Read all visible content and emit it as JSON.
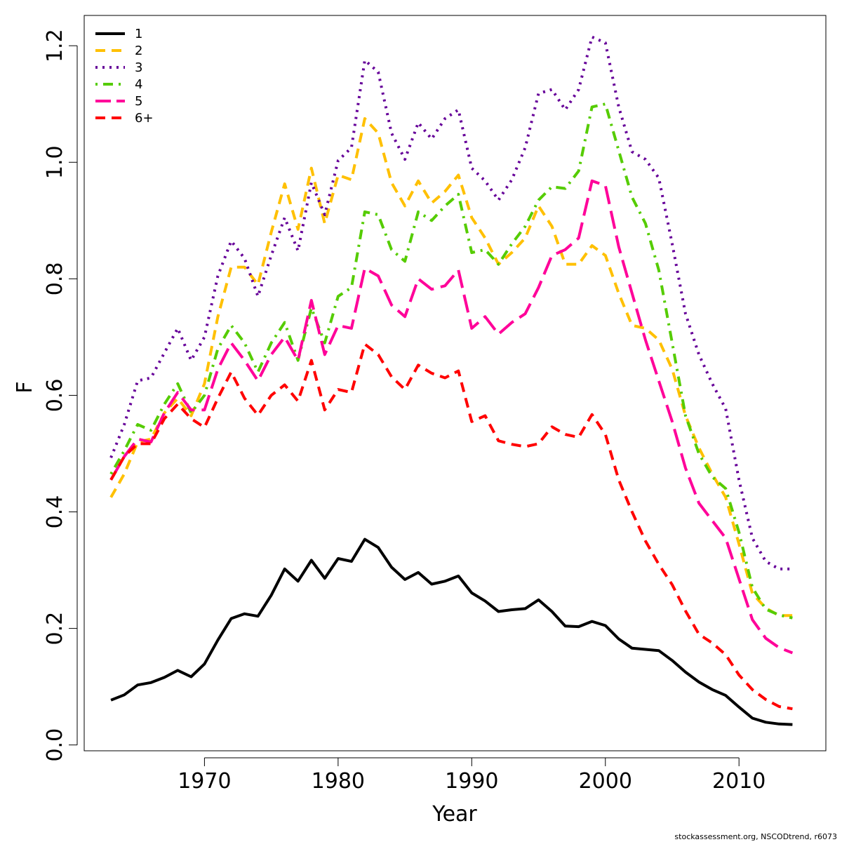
{
  "chart_data": {
    "type": "line",
    "xlabel": "Year",
    "ylabel": "F",
    "xlim": [
      1961,
      2016.5
    ],
    "ylim": [
      -0.01,
      1.252
    ],
    "xticks": [
      1970,
      1980,
      1990,
      2000,
      2010
    ],
    "yticks": [
      0.0,
      0.2,
      0.4,
      0.6,
      0.8,
      1.0,
      1.2
    ],
    "xtick_labels": [
      "1970",
      "1980",
      "1990",
      "2000",
      "2010"
    ],
    "ytick_labels": [
      "0.0",
      "0.2",
      "0.4",
      "0.6",
      "0.8",
      "1.0",
      "1.2"
    ],
    "grid": false,
    "legend_position": "top-left",
    "x": [
      1963,
      1964,
      1965,
      1966,
      1967,
      1968,
      1969,
      1970,
      1971,
      1972,
      1973,
      1974,
      1975,
      1976,
      1977,
      1978,
      1979,
      1980,
      1981,
      1982,
      1983,
      1984,
      1985,
      1986,
      1987,
      1988,
      1989,
      1990,
      1991,
      1992,
      1993,
      1994,
      1995,
      1996,
      1997,
      1998,
      1999,
      2000,
      2001,
      2002,
      2003,
      2004,
      2005,
      2006,
      2007,
      2008,
      2009,
      2010,
      2011,
      2012,
      2013,
      2014
    ],
    "series": [
      {
        "name": "1",
        "color": "#000000",
        "dash": "solid",
        "values": [
          0.077,
          0.086,
          0.103,
          0.107,
          0.116,
          0.128,
          0.117,
          0.139,
          0.18,
          0.217,
          0.225,
          0.221,
          0.257,
          0.302,
          0.281,
          0.317,
          0.286,
          0.32,
          0.315,
          0.353,
          0.339,
          0.305,
          0.284,
          0.296,
          0.276,
          0.281,
          0.29,
          0.261,
          0.247,
          0.229,
          0.232,
          0.234,
          0.249,
          0.229,
          0.204,
          0.203,
          0.212,
          0.205,
          0.182,
          0.166,
          0.164,
          0.162,
          0.145,
          0.125,
          0.108,
          0.095,
          0.085,
          0.065,
          0.046,
          0.039,
          0.036,
          0.035
        ]
      },
      {
        "name": "2",
        "color": "#FFC000",
        "dash": "dashed",
        "values": [
          0.425,
          0.465,
          0.52,
          0.525,
          0.57,
          0.595,
          0.565,
          0.62,
          0.735,
          0.82,
          0.82,
          0.79,
          0.88,
          0.963,
          0.885,
          0.99,
          0.895,
          0.978,
          0.97,
          1.075,
          1.05,
          0.965,
          0.925,
          0.968,
          0.93,
          0.95,
          0.978,
          0.905,
          0.87,
          0.825,
          0.845,
          0.87,
          0.925,
          0.89,
          0.825,
          0.825,
          0.857,
          0.84,
          0.775,
          0.72,
          0.715,
          0.695,
          0.645,
          0.565,
          0.51,
          0.465,
          0.425,
          0.345,
          0.26,
          0.235,
          0.222,
          0.222
        ]
      },
      {
        "name": "3",
        "color": "#660099",
        "dash": "dotted",
        "values": [
          0.493,
          0.55,
          0.625,
          0.63,
          0.673,
          0.715,
          0.66,
          0.7,
          0.805,
          0.865,
          0.835,
          0.77,
          0.84,
          0.905,
          0.848,
          0.965,
          0.91,
          1.003,
          1.025,
          1.175,
          1.155,
          1.05,
          1.005,
          1.068,
          1.04,
          1.075,
          1.09,
          0.99,
          0.968,
          0.935,
          0.97,
          1.025,
          1.118,
          1.125,
          1.09,
          1.125,
          1.215,
          1.205,
          1.095,
          1.018,
          1.005,
          0.973,
          0.86,
          0.74,
          0.67,
          0.62,
          0.577,
          0.455,
          0.355,
          0.315,
          0.302,
          0.302
        ]
      },
      {
        "name": "4",
        "color": "#55CC00",
        "dash": "dotdash",
        "values": [
          0.465,
          0.505,
          0.55,
          0.54,
          0.585,
          0.62,
          0.57,
          0.6,
          0.68,
          0.72,
          0.69,
          0.64,
          0.69,
          0.725,
          0.66,
          0.75,
          0.69,
          0.77,
          0.785,
          0.915,
          0.91,
          0.85,
          0.83,
          0.915,
          0.9,
          0.925,
          0.945,
          0.845,
          0.85,
          0.825,
          0.86,
          0.89,
          0.935,
          0.958,
          0.955,
          0.985,
          1.095,
          1.1,
          1.02,
          0.94,
          0.895,
          0.815,
          0.69,
          0.565,
          0.5,
          0.46,
          0.44,
          0.365,
          0.27,
          0.233,
          0.223,
          0.218
        ]
      },
      {
        "name": "5",
        "color": "#FF0099",
        "dash": "longdash",
        "values": [
          0.455,
          0.495,
          0.525,
          0.52,
          0.57,
          0.605,
          0.575,
          0.575,
          0.645,
          0.69,
          0.66,
          0.625,
          0.67,
          0.7,
          0.66,
          0.763,
          0.67,
          0.72,
          0.715,
          0.818,
          0.805,
          0.755,
          0.735,
          0.8,
          0.782,
          0.788,
          0.815,
          0.715,
          0.735,
          0.705,
          0.725,
          0.74,
          0.785,
          0.84,
          0.85,
          0.87,
          0.968,
          0.96,
          0.855,
          0.775,
          0.695,
          0.625,
          0.555,
          0.475,
          0.415,
          0.385,
          0.355,
          0.285,
          0.215,
          0.183,
          0.167,
          0.158
        ]
      },
      {
        "name": "6+",
        "color": "#FF0000",
        "dash": "dashed",
        "values": [
          0.455,
          0.495,
          0.517,
          0.517,
          0.56,
          0.585,
          0.56,
          0.545,
          0.595,
          0.64,
          0.595,
          0.566,
          0.6,
          0.618,
          0.59,
          0.66,
          0.575,
          0.61,
          0.605,
          0.688,
          0.67,
          0.632,
          0.61,
          0.652,
          0.638,
          0.63,
          0.642,
          0.555,
          0.565,
          0.522,
          0.516,
          0.512,
          0.517,
          0.546,
          0.533,
          0.528,
          0.567,
          0.533,
          0.455,
          0.4,
          0.35,
          0.31,
          0.275,
          0.23,
          0.19,
          0.175,
          0.155,
          0.12,
          0.095,
          0.078,
          0.066,
          0.062
        ]
      }
    ]
  },
  "footnote": "stockassessment.org, NSCODtrend, r6073"
}
